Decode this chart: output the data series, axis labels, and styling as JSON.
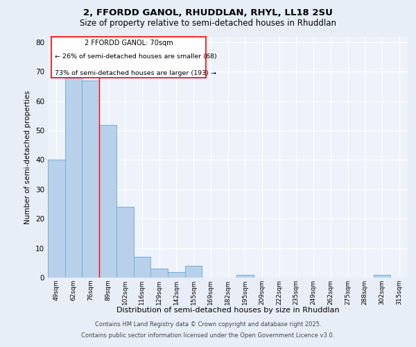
{
  "title1": "2, FFORDD GANOL, RHUDDLAN, RHYL, LL18 2SU",
  "title2": "Size of property relative to semi-detached houses in Rhuddlan",
  "xlabel": "Distribution of semi-detached houses by size in Rhuddlan",
  "ylabel": "Number of semi-detached properties",
  "categories": [
    "49sqm",
    "62sqm",
    "76sqm",
    "89sqm",
    "102sqm",
    "116sqm",
    "129sqm",
    "142sqm",
    "155sqm",
    "169sqm",
    "182sqm",
    "195sqm",
    "209sqm",
    "222sqm",
    "235sqm",
    "249sqm",
    "262sqm",
    "275sqm",
    "288sqm",
    "302sqm",
    "315sqm"
  ],
  "values": [
    40,
    68,
    67,
    52,
    24,
    7,
    3,
    2,
    4,
    0,
    0,
    1,
    0,
    0,
    0,
    0,
    0,
    0,
    0,
    1,
    0
  ],
  "bar_color": "#b8d0ea",
  "bar_edge_color": "#7aacd4",
  "red_line_x": 2.5,
  "annotation_title": "2 FFORDD GANOL: 70sqm",
  "annotation_line1": "← 26% of semi-detached houses are smaller (68)",
  "annotation_line2": "73% of semi-detached houses are larger (193) →",
  "ylim": [
    0,
    82
  ],
  "yticks": [
    0,
    10,
    20,
    30,
    40,
    50,
    60,
    70,
    80
  ],
  "footer1": "Contains HM Land Registry data © Crown copyright and database right 2025.",
  "footer2": "Contains public sector information licensed under the Open Government Licence v3.0.",
  "bg_color": "#e8eef8",
  "plot_bg_color": "#edf2fb"
}
